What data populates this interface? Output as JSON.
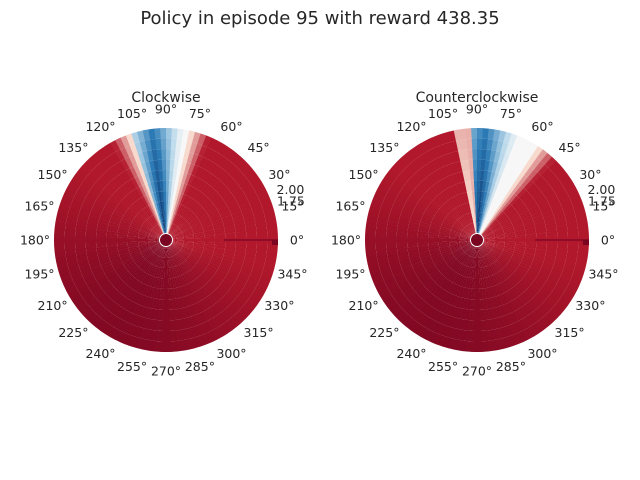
{
  "figure": {
    "title": "Policy in episode 95 with reward 438.35"
  },
  "chart_data": [
    {
      "type": "heatmap",
      "projection": "polar",
      "title": "Clockwise",
      "theta_unit": "degrees",
      "theta_ticks": [
        "0°",
        "15°",
        "30°",
        "45°",
        "60°",
        "75°",
        "90°",
        "105°",
        "120°",
        "135°",
        "150°",
        "165°",
        "180°",
        "195°",
        "210°",
        "225°",
        "240°",
        "255°",
        "270°",
        "285°",
        "300°",
        "315°",
        "330°",
        "345°"
      ],
      "r_tick_labels": [
        "1.75",
        "2.00"
      ],
      "colormap": "RdBu",
      "grid": false,
      "light_sector": {
        "center_deg": 93,
        "width_deg": 32,
        "darkest_deg": 97
      },
      "pale_band_deg": [
        79,
        87
      ],
      "colors": {
        "dark_red": "#7a0622",
        "red": "#b2182b",
        "pale": "#fbe3d5",
        "white": "#f7f7f7",
        "light_blue": "#b9d8ea",
        "blue": "#2c7bb6",
        "dark_blue": "#08306b"
      }
    },
    {
      "type": "heatmap",
      "projection": "polar",
      "title": "Counterclockwise",
      "theta_unit": "degrees",
      "theta_ticks": [
        "0°",
        "15°",
        "30°",
        "45°",
        "60°",
        "75°",
        "90°",
        "105°",
        "120°",
        "135°",
        "150°",
        "165°",
        "180°",
        "195°",
        "210°",
        "225°",
        "240°",
        "255°",
        "270°",
        "285°",
        "300°",
        "315°",
        "330°",
        "345°"
      ],
      "r_tick_labels": [
        "1.75",
        "2.00"
      ],
      "colormap": "RdBu",
      "grid": false,
      "light_sector": {
        "center_deg": 74,
        "width_deg": 36,
        "darkest_deg": 86
      },
      "pale_band_deg": [
        96,
        102
      ],
      "colors": {
        "dark_red": "#7a0622",
        "red": "#b2182b",
        "pale": "#fbe3d5",
        "white": "#f7f7f7",
        "light_blue": "#b9d8ea",
        "blue": "#2c7bb6",
        "dark_blue": "#08306b"
      }
    }
  ]
}
